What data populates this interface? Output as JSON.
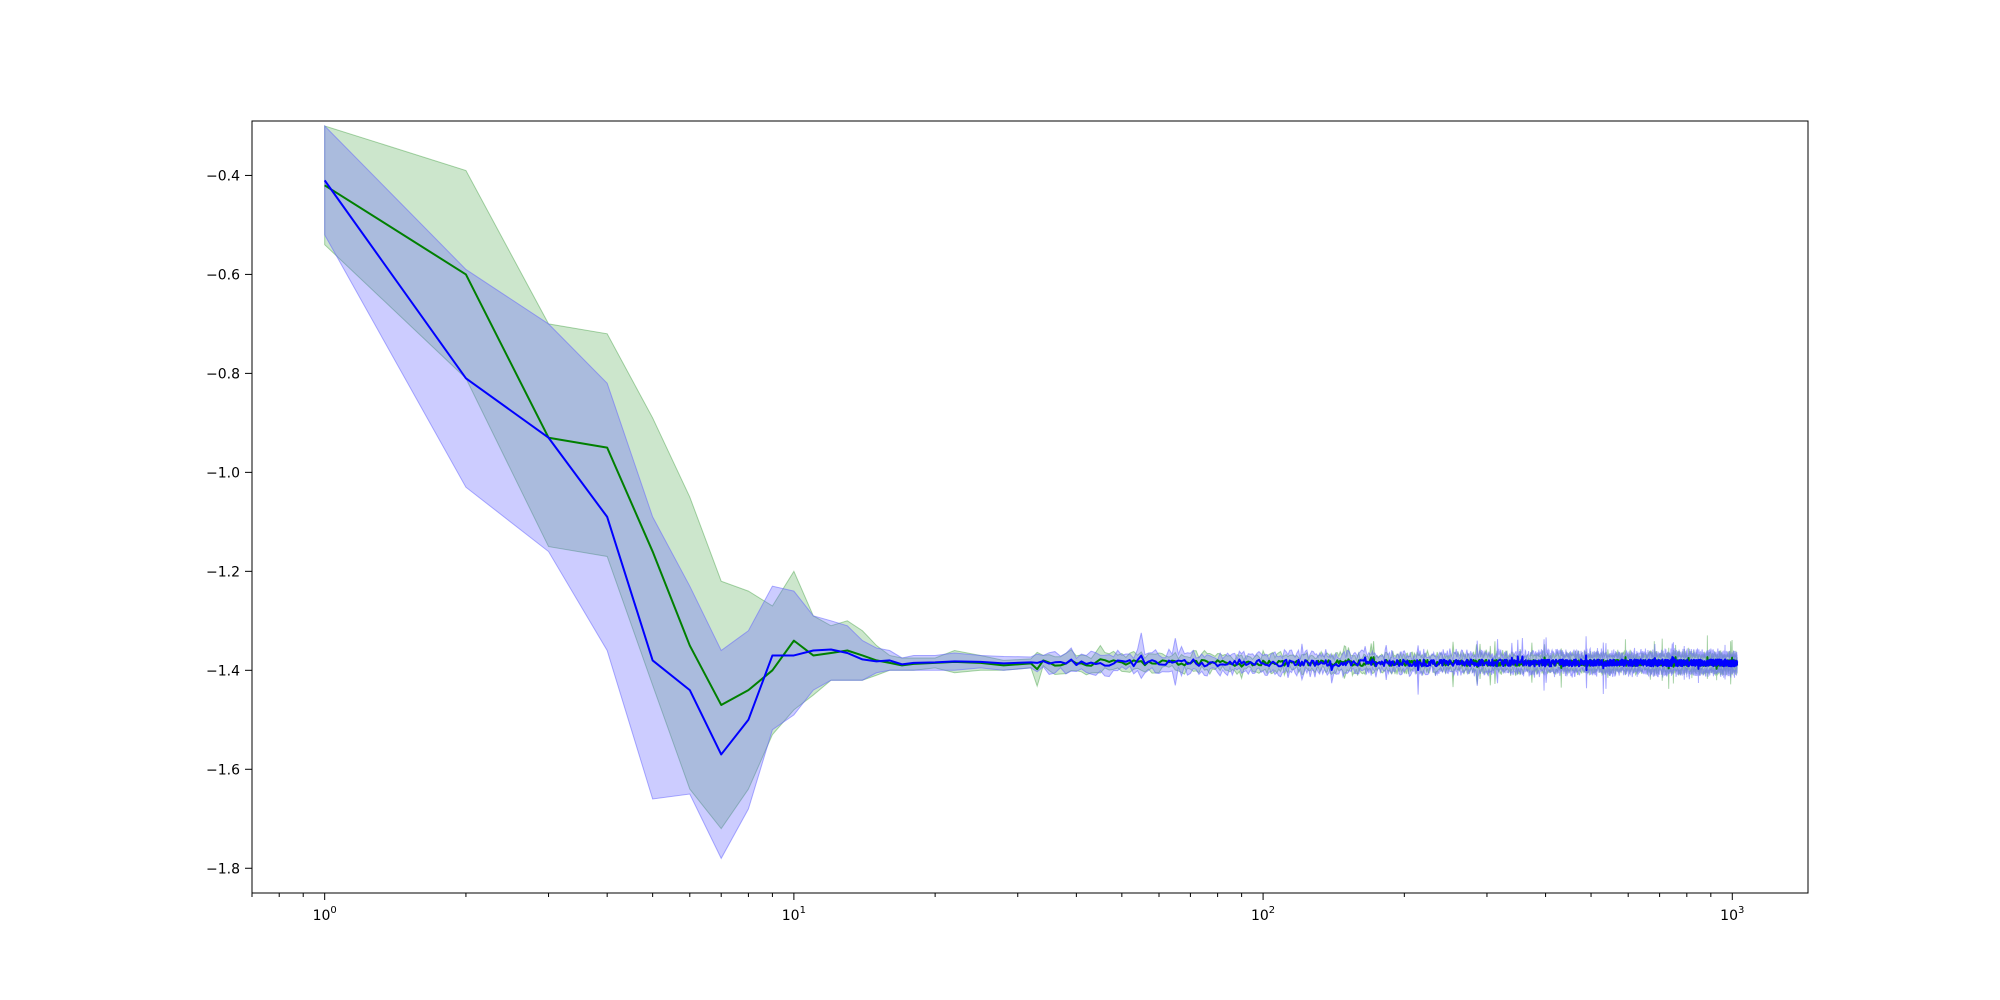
{
  "chart_data": {
    "type": "line",
    "title": "",
    "xlabel": "",
    "ylabel": "",
    "xscale": "log",
    "xlim": [
      0.7,
      1450
    ],
    "ylim": [
      -1.85,
      -0.29
    ],
    "grid": false,
    "legend": "none",
    "x_ticks": [
      {
        "value": 1,
        "base": "10",
        "exp": "0"
      },
      {
        "value": 10,
        "base": "10",
        "exp": "1"
      },
      {
        "value": 100,
        "base": "10",
        "exp": "2"
      },
      {
        "value": 1000,
        "base": "10",
        "exp": "3"
      }
    ],
    "y_ticks": [
      {
        "value": -1.8,
        "label": "−1.8"
      },
      {
        "value": -1.6,
        "label": "−1.6"
      },
      {
        "value": -1.4,
        "label": "−1.4"
      },
      {
        "value": -1.2,
        "label": "−1.2"
      },
      {
        "value": -1.0,
        "label": "−1.0"
      },
      {
        "value": -0.8,
        "label": "−0.8"
      },
      {
        "value": -0.6,
        "label": "−0.6"
      },
      {
        "value": -0.4,
        "label": "−0.4"
      }
    ],
    "series": [
      {
        "color": "#008000",
        "band_color": "#008000",
        "band_opacity": 0.2,
        "head": [
          [
            1,
            -0.42,
            -0.54,
            -0.3
          ],
          [
            2,
            -0.6,
            -0.81,
            -0.39
          ],
          [
            3,
            -0.93,
            -1.15,
            -0.7
          ],
          [
            4,
            -0.95,
            -1.17,
            -0.72
          ],
          [
            5,
            -1.16,
            -1.43,
            -0.89
          ],
          [
            6,
            -1.35,
            -1.64,
            -1.05
          ],
          [
            7,
            -1.47,
            -1.72,
            -1.22
          ],
          [
            8,
            -1.44,
            -1.64,
            -1.24
          ],
          [
            9,
            -1.4,
            -1.53,
            -1.27
          ],
          [
            10,
            -1.34,
            -1.48,
            -1.2
          ],
          [
            11,
            -1.37,
            -1.45,
            -1.29
          ],
          [
            12,
            -1.365,
            -1.42,
            -1.31
          ],
          [
            13,
            -1.36,
            -1.42,
            -1.3
          ],
          [
            14,
            -1.37,
            -1.42,
            -1.32
          ],
          [
            15,
            -1.38,
            -1.41,
            -1.35
          ],
          [
            16,
            -1.385,
            -1.4,
            -1.37
          ],
          [
            17,
            -1.39,
            -1.4,
            -1.375
          ],
          [
            18,
            -1.387,
            -1.4,
            -1.375
          ],
          [
            20,
            -1.385,
            -1.395,
            -1.375
          ],
          [
            22,
            -1.383,
            -1.405,
            -1.36
          ],
          [
            25,
            -1.385,
            -1.4,
            -1.37
          ],
          [
            28,
            -1.39,
            -1.4,
            -1.38
          ],
          [
            32,
            -1.386,
            -1.395,
            -1.377
          ]
        ],
        "tail": {
          "from": 33,
          "to": 1024,
          "mean": -1.385,
          "noise": 0.006,
          "band": 0.015
        }
      },
      {
        "color": "#0000ff",
        "band_color": "#6464ff",
        "band_opacity": 0.33,
        "head": [
          [
            1,
            -0.41,
            -0.52,
            -0.3
          ],
          [
            2,
            -0.81,
            -1.03,
            -0.59
          ],
          [
            3,
            -0.93,
            -1.16,
            -0.7
          ],
          [
            4,
            -1.09,
            -1.36,
            -0.82
          ],
          [
            5,
            -1.38,
            -1.66,
            -1.09
          ],
          [
            6,
            -1.44,
            -1.65,
            -1.23
          ],
          [
            7,
            -1.57,
            -1.78,
            -1.36
          ],
          [
            8,
            -1.5,
            -1.68,
            -1.32
          ],
          [
            9,
            -1.37,
            -1.52,
            -1.23
          ],
          [
            10,
            -1.37,
            -1.49,
            -1.24
          ],
          [
            11,
            -1.36,
            -1.44,
            -1.29
          ],
          [
            12,
            -1.358,
            -1.42,
            -1.3
          ],
          [
            13,
            -1.365,
            -1.42,
            -1.31
          ],
          [
            14,
            -1.378,
            -1.42,
            -1.34
          ],
          [
            15,
            -1.382,
            -1.405,
            -1.355
          ],
          [
            16,
            -1.38,
            -1.4,
            -1.36
          ],
          [
            17,
            -1.388,
            -1.4,
            -1.375
          ],
          [
            18,
            -1.385,
            -1.4,
            -1.37
          ],
          [
            20,
            -1.384,
            -1.4,
            -1.37
          ],
          [
            22,
            -1.382,
            -1.4,
            -1.365
          ],
          [
            25,
            -1.383,
            -1.395,
            -1.37
          ],
          [
            28,
            -1.386,
            -1.4,
            -1.372
          ],
          [
            32,
            -1.384,
            -1.395,
            -1.373
          ]
        ],
        "tail": {
          "from": 33,
          "to": 1024,
          "mean": -1.385,
          "noise": 0.007,
          "band": 0.017
        }
      }
    ]
  }
}
